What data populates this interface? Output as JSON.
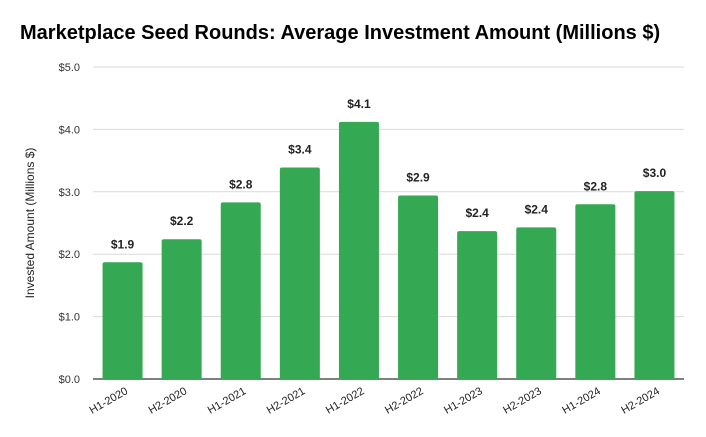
{
  "chart_data": {
    "type": "bar",
    "title": "Marketplace Seed Rounds: Average Investment Amount (Millions $)",
    "xlabel": "",
    "ylabel": "Invested Amount (Millions $)",
    "categories": [
      "H1-2020",
      "H2-2020",
      "H1-2021",
      "H2-2021",
      "H1-2022",
      "H2-2022",
      "H1-2023",
      "H2-2023",
      "H1-2024",
      "H2-2024"
    ],
    "values": [
      1.87,
      2.24,
      2.83,
      3.39,
      4.12,
      2.94,
      2.37,
      2.43,
      2.8,
      3.01
    ],
    "data_labels": [
      "$1.9",
      "$2.2",
      "$2.8",
      "$3.4",
      "$4.1",
      "$2.9",
      "$2.4",
      "$2.4",
      "$2.8",
      "$3.0"
    ],
    "yticks": [
      0,
      1,
      2,
      3,
      4,
      5
    ],
    "ytick_labels": [
      "$0.0",
      "$1.0",
      "$2.0",
      "$3.0",
      "$4.0",
      "$5.0"
    ],
    "ylim": [
      0,
      5
    ],
    "grid": true,
    "legend": "none",
    "bar_color": "#34a853"
  }
}
